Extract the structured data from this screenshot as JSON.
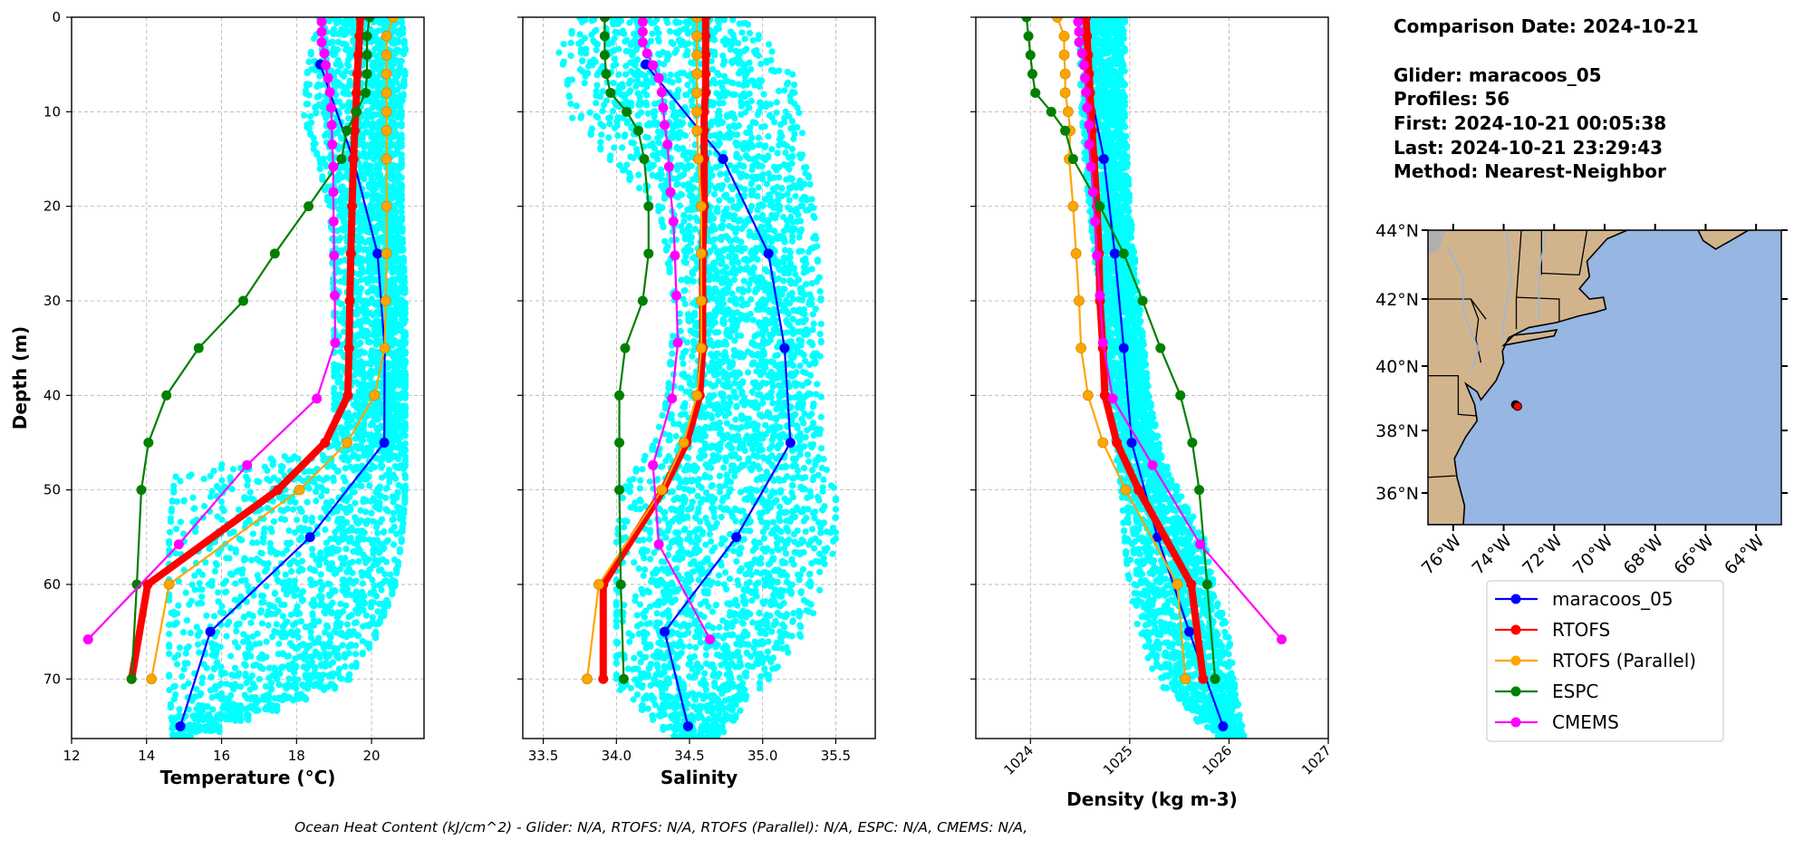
{
  "info": {
    "comparison_date": "Comparison Date: 2024-10-21",
    "glider": "Glider: maracoos_05",
    "profiles": "Profiles: 56",
    "first": "First: 2024-10-21 00:05:38",
    "last": "Last: 2024-10-21 23:29:43",
    "method": "Method: Nearest-Neighbor"
  },
  "caption": "Ocean Heat Content (kJ/cm^2) - Glider: N/A,  RTOFS: N/A,  RTOFS (Parallel): N/A,  ESPC: N/A,  CMEMS: N/A,",
  "colors": {
    "glider": "#0000ff",
    "rtofs": "#ff0000",
    "rtofs_parallel": "#ffa500",
    "espc": "#008000",
    "cmems": "#ff00ff",
    "scatter": "#00ffff",
    "ocean": "#97b6e1",
    "land": "#d2b48c"
  },
  "legend": {
    "placement": "below map",
    "items": [
      {
        "label": "maracoos_05",
        "color": "#0000ff"
      },
      {
        "label": "RTOFS",
        "color": "#ff0000"
      },
      {
        "label": "RTOFS (Parallel)",
        "color": "#ffa500"
      },
      {
        "label": "ESPC",
        "color": "#008000"
      },
      {
        "label": "CMEMS",
        "color": "#ff00ff"
      }
    ]
  },
  "map": {
    "lon_range": [
      -77,
      -63
    ],
    "lat_range": [
      35,
      44
    ],
    "lat_ticks": [
      "44°N",
      "42°N",
      "40°N",
      "38°N",
      "36°N"
    ],
    "lat_values": [
      44,
      42,
      40,
      38,
      36
    ],
    "lon_ticks": [
      "76°W",
      "74°W",
      "72°W",
      "70°W",
      "68°W",
      "66°W",
      "64°W"
    ],
    "lon_values": [
      -76,
      -74,
      -72,
      -70,
      -68,
      -66,
      -64
    ],
    "glider_position": {
      "lon": -73.45,
      "lat": 38.75
    }
  },
  "depths": {
    "model": [
      0,
      2,
      4,
      6,
      8,
      10,
      12,
      15,
      20,
      25,
      30,
      35,
      40,
      45,
      50,
      60,
      70
    ],
    "glider": [
      5,
      15,
      25,
      35,
      45,
      55,
      65,
      75
    ],
    "cmems": [
      0.49,
      1.54,
      2.65,
      3.82,
      5.08,
      6.44,
      7.93,
      9.57,
      11.41,
      13.47,
      15.81,
      18.5,
      21.6,
      25.21,
      29.44,
      34.43,
      40.34,
      47.37,
      55.76,
      65.81
    ],
    "scatter": [
      0,
      3,
      5,
      10,
      15,
      20,
      30,
      40,
      45,
      48,
      50,
      55,
      60,
      65,
      70,
      76
    ]
  },
  "chart_data": [
    {
      "type": "line",
      "xlabel": "Temperature (°C)",
      "ylabel": "Depth (m)",
      "xlim": [
        12,
        21.4
      ],
      "ylim": [
        76.3,
        0
      ],
      "grid": true,
      "xticks": [
        "12",
        "14",
        "16",
        "18",
        "20"
      ],
      "xtick_values": [
        12,
        14,
        16,
        18,
        20
      ],
      "yticks": [
        "0",
        "10",
        "20",
        "30",
        "40",
        "50",
        "60",
        "70"
      ],
      "ytick_values": [
        0,
        10,
        20,
        30,
        40,
        50,
        60,
        70
      ],
      "scatter_envelope": {
        "min": [
          18.6,
          18.4,
          18.3,
          18.2,
          18.6,
          18.9,
          19.0,
          19.0,
          19.0,
          14.8,
          14.7,
          14.6,
          14.6,
          14.6,
          14.6,
          14.7
        ],
        "max": [
          20.8,
          20.9,
          20.9,
          20.8,
          20.8,
          20.8,
          20.9,
          20.9,
          20.9,
          20.9,
          20.9,
          20.8,
          20.6,
          20.1,
          19.3,
          15.1
        ]
      },
      "series": [
        {
          "name": "maracoos_05",
          "key": "glider",
          "depth": "glider",
          "values": [
            18.63,
            19.51,
            20.16,
            20.35,
            20.34,
            18.36,
            15.7,
            14.9
          ]
        },
        {
          "name": "RTOFS",
          "key": "rtofs",
          "depth": "model",
          "values": [
            19.7,
            19.68,
            19.65,
            19.62,
            19.6,
            19.58,
            19.55,
            19.52,
            19.48,
            19.45,
            19.42,
            19.4,
            19.37,
            18.76,
            17.5,
            14.03,
            13.6
          ]
        },
        {
          "name": "RTOFS (Parallel)",
          "key": "rtofs_parallel",
          "depth": "model",
          "values": [
            20.58,
            20.4,
            20.4,
            20.4,
            20.4,
            20.4,
            20.4,
            20.4,
            20.4,
            20.4,
            20.38,
            20.35,
            20.08,
            19.35,
            18.08,
            14.6,
            14.13
          ]
        },
        {
          "name": "ESPC",
          "key": "espc",
          "depth": "model",
          "values": [
            19.95,
            19.88,
            19.88,
            19.88,
            19.84,
            19.6,
            19.34,
            19.2,
            18.32,
            17.42,
            16.58,
            15.39,
            14.53,
            14.05,
            13.86,
            13.74,
            13.6
          ]
        },
        {
          "name": "CMEMS",
          "key": "cmems",
          "depth": "cmems",
          "values": [
            18.67,
            18.67,
            18.67,
            18.74,
            18.78,
            18.84,
            18.89,
            18.92,
            18.94,
            18.95,
            18.98,
            18.98,
            18.99,
            19.0,
            19.02,
            19.03,
            18.54,
            16.68,
            14.86,
            12.44
          ]
        }
      ]
    },
    {
      "type": "line",
      "xlabel": "Salinity",
      "xlim": [
        33.36,
        35.77
      ],
      "ylim": [
        76.3,
        0
      ],
      "grid": true,
      "xticks": [
        "33.5",
        "34.0",
        "34.5",
        "35.0",
        "35.5"
      ],
      "xtick_values": [
        33.5,
        34.0,
        34.5,
        35.0,
        35.5
      ],
      "ytick_values": [
        0,
        10,
        20,
        30,
        40,
        50,
        60,
        70
      ],
      "scatter_envelope": {
        "min": [
          33.75,
          33.6,
          33.65,
          33.7,
          34.0,
          34.3,
          34.4,
          34.35,
          34.25,
          34.1,
          34.05,
          34.0,
          34.0,
          34.0,
          34.0,
          34.4
        ],
        "max": [
          34.9,
          35.1,
          35.2,
          35.25,
          35.3,
          35.35,
          35.4,
          35.4,
          35.4,
          35.45,
          35.5,
          35.5,
          35.4,
          35.3,
          35.0,
          34.7
        ]
      },
      "series": [
        {
          "name": "maracoos_05",
          "key": "glider",
          "depth": "glider",
          "values": [
            34.2,
            34.73,
            35.04,
            35.15,
            35.19,
            34.82,
            34.33,
            34.49
          ]
        },
        {
          "name": "RTOFS",
          "key": "rtofs",
          "depth": "model",
          "values": [
            34.61,
            34.61,
            34.61,
            34.61,
            34.61,
            34.6,
            34.6,
            34.6,
            34.6,
            34.59,
            34.59,
            34.59,
            34.57,
            34.48,
            34.32,
            33.91,
            33.91
          ]
        },
        {
          "name": "RTOFS (Parallel)",
          "key": "rtofs_parallel",
          "depth": "model",
          "values": [
            34.55,
            34.55,
            34.55,
            34.55,
            34.55,
            34.55,
            34.55,
            34.56,
            34.58,
            34.58,
            34.58,
            34.58,
            34.55,
            34.46,
            34.31,
            33.88,
            33.8
          ]
        },
        {
          "name": "ESPC",
          "key": "espc",
          "depth": "model",
          "values": [
            33.92,
            33.92,
            33.92,
            33.93,
            33.96,
            34.07,
            34.15,
            34.19,
            34.22,
            34.22,
            34.18,
            34.06,
            34.02,
            34.02,
            34.02,
            34.03,
            34.05
          ]
        },
        {
          "name": "CMEMS",
          "key": "cmems",
          "depth": "cmems",
          "values": [
            34.18,
            34.18,
            34.18,
            34.21,
            34.25,
            34.29,
            34.31,
            34.32,
            34.33,
            34.35,
            34.36,
            34.37,
            34.39,
            34.4,
            34.41,
            34.42,
            34.38,
            34.25,
            34.29,
            34.64
          ]
        }
      ]
    },
    {
      "type": "line",
      "xlabel": "Density (kg m-3)",
      "xlim": [
        1023.45,
        1027
      ],
      "ylim": [
        76.3,
        0
      ],
      "grid": true,
      "xticks": [
        "1024",
        "1025",
        "1026",
        "1027"
      ],
      "xtick_values": [
        1024,
        1025,
        1026,
        1027
      ],
      "ytick_values": [
        0,
        10,
        20,
        30,
        40,
        50,
        60,
        70
      ],
      "scatter_envelope": {
        "min": [
          1024.5,
          1024.5,
          1024.5,
          1024.52,
          1024.55,
          1024.6,
          1024.7,
          1024.8,
          1024.85,
          1024.9,
          1024.92,
          1024.95,
          1025.0,
          1025.1,
          1025.3,
          1025.9
        ],
        "max": [
          1024.95,
          1024.95,
          1024.95,
          1024.95,
          1024.98,
          1025.0,
          1025.1,
          1025.2,
          1025.3,
          1025.4,
          1025.5,
          1025.75,
          1025.85,
          1026.0,
          1026.05,
          1026.15
        ]
      },
      "series": [
        {
          "name": "maracoos_05",
          "key": "glider",
          "depth": "glider",
          "values": [
            1024.55,
            1024.74,
            1024.85,
            1024.94,
            1025.02,
            1025.28,
            1025.6,
            1025.94
          ]
        },
        {
          "name": "RTOFS",
          "key": "rtofs",
          "depth": "model",
          "values": [
            1024.56,
            1024.57,
            1024.58,
            1024.59,
            1024.6,
            1024.61,
            1024.62,
            1024.64,
            1024.67,
            1024.69,
            1024.7,
            1024.73,
            1024.75,
            1024.87,
            1025.09,
            1025.62,
            1025.74
          ]
        },
        {
          "name": "RTOFS (Parallel)",
          "key": "rtofs_parallel",
          "depth": "model",
          "values": [
            1024.27,
            1024.34,
            1024.34,
            1024.35,
            1024.35,
            1024.38,
            1024.4,
            1024.39,
            1024.43,
            1024.46,
            1024.49,
            1024.51,
            1024.58,
            1024.73,
            1024.96,
            1025.48,
            1025.56
          ]
        },
        {
          "name": "ESPC",
          "key": "espc",
          "depth": "model",
          "values": [
            1023.96,
            1023.98,
            1024.0,
            1024.02,
            1024.05,
            1024.21,
            1024.35,
            1024.43,
            1024.7,
            1024.94,
            1025.13,
            1025.31,
            1025.51,
            1025.63,
            1025.7,
            1025.78,
            1025.86
          ]
        },
        {
          "name": "CMEMS",
          "key": "cmems",
          "depth": "cmems",
          "values": [
            1024.48,
            1024.49,
            1024.49,
            1024.52,
            1024.54,
            1024.55,
            1024.56,
            1024.57,
            1024.59,
            1024.59,
            1024.61,
            1024.63,
            1024.65,
            1024.67,
            1024.7,
            1024.73,
            1024.83,
            1025.23,
            1025.71,
            1026.53
          ]
        }
      ]
    }
  ]
}
